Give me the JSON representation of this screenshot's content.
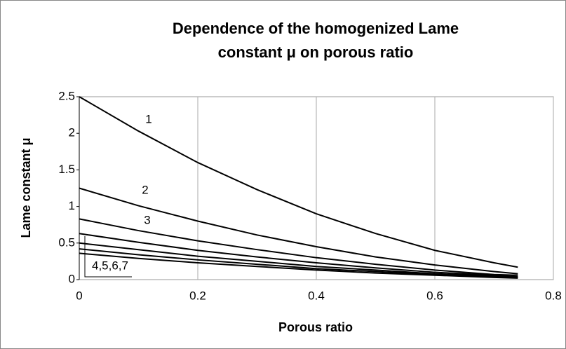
{
  "chart_data": {
    "type": "line",
    "title": [
      "Dependence of the homogenized Lame",
      "constant μ on porous ratio"
    ],
    "x_label": "Porous ratio",
    "y_label": "Lame constant μ",
    "x": [
      0,
      0.1,
      0.2,
      0.3,
      0.4,
      0.5,
      0.6,
      0.7,
      0.74
    ],
    "series": [
      {
        "color": "#000000",
        "values": [
          2.5,
          2.03,
          1.6,
          1.23,
          0.9,
          0.63,
          0.4,
          0.23,
          0.17
        ]
      },
      {
        "color": "#000000",
        "values": [
          1.25,
          1.01,
          0.8,
          0.61,
          0.45,
          0.31,
          0.2,
          0.11,
          0.08
        ]
      },
      {
        "color": "#000000",
        "values": [
          0.83,
          0.67,
          0.53,
          0.41,
          0.3,
          0.21,
          0.13,
          0.07,
          0.06
        ]
      },
      {
        "color": "#000000",
        "values": [
          0.63,
          0.51,
          0.4,
          0.31,
          0.23,
          0.16,
          0.1,
          0.06,
          0.04
        ]
      },
      {
        "color": "#000000",
        "values": [
          0.5,
          0.41,
          0.32,
          0.25,
          0.18,
          0.13,
          0.08,
          0.05,
          0.03
        ]
      },
      {
        "color": "#000000",
        "values": [
          0.42,
          0.34,
          0.27,
          0.21,
          0.15,
          0.11,
          0.07,
          0.04,
          0.03
        ]
      },
      {
        "color": "#000000",
        "values": [
          0.36,
          0.29,
          0.23,
          0.18,
          0.13,
          0.09,
          0.06,
          0.03,
          0.02
        ]
      }
    ],
    "annotations": [
      "1",
      "2",
      "3",
      "4,5,6,7"
    ],
    "xlim": [
      0,
      0.8
    ],
    "xticks": [
      0,
      0.2,
      0.4,
      0.6,
      0.8
    ],
    "ylim": [
      0,
      2.5
    ],
    "yticks": [
      0,
      0.5,
      1,
      1.5,
      2,
      2.5
    ],
    "grid": "x"
  }
}
